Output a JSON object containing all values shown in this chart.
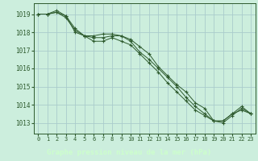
{
  "bg_color": "#cceedd",
  "plot_bg_color": "#cceedd",
  "grid_color": "#aacccc",
  "line_color": "#2d5a2d",
  "title": "Graphe pression niveau de la mer (hPa)",
  "title_bg": "#336633",
  "title_fg": "#ccffcc",
  "xlim": [
    -0.5,
    23.5
  ],
  "ylim": [
    1012.4,
    1019.6
  ],
  "yticks": [
    1013,
    1014,
    1015,
    1016,
    1017,
    1018,
    1019
  ],
  "xticks": [
    0,
    1,
    2,
    3,
    4,
    5,
    6,
    7,
    8,
    9,
    10,
    11,
    12,
    13,
    14,
    15,
    16,
    17,
    18,
    19,
    20,
    21,
    22,
    23
  ],
  "series": [
    [
      1019.0,
      1019.0,
      1019.2,
      1018.9,
      1018.0,
      1017.8,
      1017.8,
      1017.9,
      1017.9,
      1017.8,
      1017.6,
      1017.2,
      1016.8,
      1016.1,
      1015.6,
      1015.1,
      1014.7,
      1014.1,
      1013.8,
      1013.1,
      1013.1,
      1013.5,
      1013.7,
      1013.5
    ],
    [
      1019.0,
      1019.0,
      1019.1,
      1018.8,
      1018.1,
      1017.8,
      1017.7,
      1017.7,
      1017.8,
      1017.8,
      1017.5,
      1016.9,
      1016.5,
      1016.0,
      1015.5,
      1015.0,
      1014.4,
      1013.9,
      1013.5,
      1013.1,
      1013.0,
      1013.4,
      1013.8,
      1013.5
    ],
    [
      1019.0,
      1019.0,
      1019.1,
      1018.9,
      1018.2,
      1017.8,
      1017.5,
      1017.5,
      1017.7,
      1017.5,
      1017.3,
      1016.8,
      1016.3,
      1015.8,
      1015.2,
      1014.7,
      1014.2,
      1013.7,
      1013.4,
      1013.1,
      1013.1,
      1013.5,
      1013.9,
      1013.5
    ]
  ]
}
